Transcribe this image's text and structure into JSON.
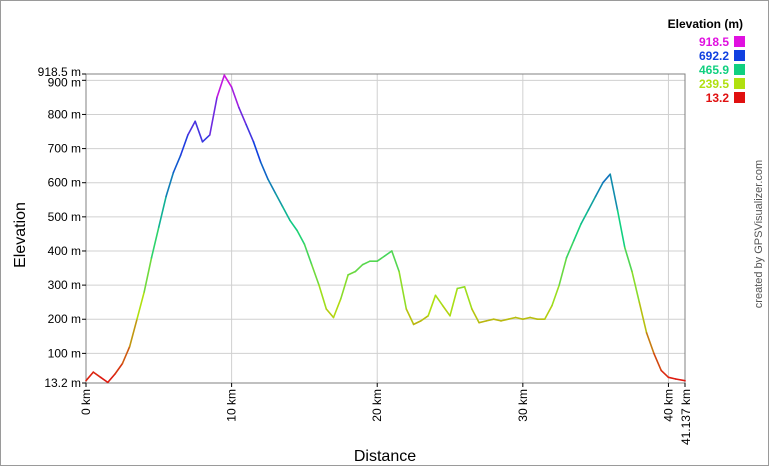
{
  "chart_data": {
    "type": "line",
    "xlabel": "Distance",
    "ylabel": "Elevation",
    "x_unit": "km",
    "y_unit": "m",
    "xlim": [
      0,
      41.137
    ],
    "ylim": [
      13.2,
      918.5
    ],
    "grid": true,
    "x_ticks": [
      {
        "value": 0,
        "label": "0 km"
      },
      {
        "value": 10,
        "label": "10 km"
      },
      {
        "value": 20,
        "label": "20 km"
      },
      {
        "value": 30,
        "label": "30 km"
      },
      {
        "value": 40,
        "label": "40 km"
      },
      {
        "value": 41.137,
        "label": "41.137 km"
      }
    ],
    "y_ticks": [
      {
        "value": 13.2,
        "label": "13.2 m"
      },
      {
        "value": 100,
        "label": "100 m"
      },
      {
        "value": 200,
        "label": "200 m"
      },
      {
        "value": 300,
        "label": "300 m"
      },
      {
        "value": 400,
        "label": "400 m"
      },
      {
        "value": 500,
        "label": "500 m"
      },
      {
        "value": 600,
        "label": "600 m"
      },
      {
        "value": 700,
        "label": "700 m"
      },
      {
        "value": 800,
        "label": "800 m"
      },
      {
        "value": 900,
        "label": "900 m"
      },
      {
        "value": 918.5,
        "label": "918.5 m"
      }
    ],
    "legend": {
      "title": "Elevation (m)",
      "placement": "top-right",
      "entries": [
        {
          "label": "918.5",
          "color": "#e010e0"
        },
        {
          "label": "692.2",
          "color": "#1040e0"
        },
        {
          "label": "465.9",
          "color": "#10d080"
        },
        {
          "label": "239.5",
          "color": "#b0e010"
        },
        {
          "label": "13.2",
          "color": "#e01010"
        }
      ]
    },
    "color_scale": "elevation gradient red-yellow-green-cyan-blue-magenta",
    "credit": "created by GPSVisualizer.com",
    "series": [
      {
        "x": [
          0,
          0.5,
          1,
          1.5,
          2,
          2.5,
          3,
          3.5,
          4,
          4.5,
          5,
          5.5,
          6,
          6.5,
          7,
          7.5,
          8,
          8.5,
          9,
          9.5,
          10,
          10.5,
          11,
          11.5,
          12,
          12.5,
          13,
          13.5,
          14,
          14.5,
          15,
          15.5,
          16,
          16.5,
          17,
          17.5,
          18,
          18.5,
          19,
          19.5,
          20,
          20.5,
          21,
          21.5,
          22,
          22.5,
          23,
          23.5,
          24,
          24.5,
          25,
          25.5,
          26,
          26.5,
          27,
          27.5,
          28,
          28.5,
          29,
          29.5,
          30,
          30.5,
          31,
          31.5,
          32,
          32.5,
          33,
          33.5,
          34,
          34.5,
          35,
          35.5,
          36,
          36.5,
          37,
          37.5,
          38,
          38.5,
          39,
          39.5,
          40,
          40.5,
          41.137
        ],
        "y": [
          20,
          45,
          30,
          15,
          40,
          70,
          120,
          200,
          280,
          380,
          470,
          560,
          630,
          680,
          740,
          780,
          720,
          740,
          850,
          915,
          880,
          820,
          770,
          720,
          660,
          610,
          570,
          530,
          490,
          460,
          420,
          360,
          300,
          230,
          205,
          260,
          330,
          340,
          360,
          370,
          370,
          385,
          400,
          340,
          230,
          185,
          195,
          210,
          270,
          240,
          210,
          290,
          295,
          230,
          190,
          195,
          200,
          195,
          200,
          205,
          200,
          205,
          200,
          200,
          240,
          300,
          380,
          430,
          480,
          520,
          560,
          600,
          625,
          520,
          410,
          340,
          250,
          160,
          100,
          50,
          30,
          25,
          20
        ]
      }
    ]
  }
}
